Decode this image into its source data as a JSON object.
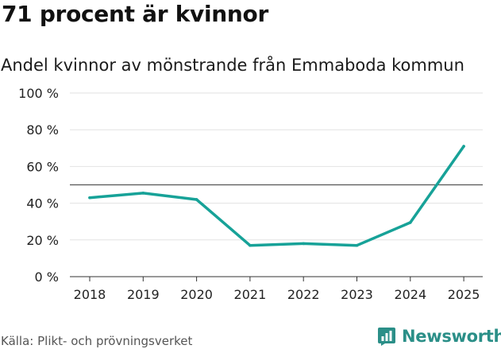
{
  "header": {
    "title": "71 procent är kvinnor",
    "subtitle": "Andel kvinnor av mönstrande från Emmaboda kommun"
  },
  "footer": {
    "source": "Källa: Plikt- och prövningsverket",
    "brand": "Newsworthy"
  },
  "colors": {
    "line": "#17a298",
    "grid": "#e2e2e2",
    "reference": "#555555",
    "brand": "#2b8f88"
  },
  "chart_data": {
    "type": "line",
    "title": "71 procent är kvinnor",
    "subtitle": "Andel kvinnor av mönstrande från Emmaboda kommun",
    "xlabel": "",
    "ylabel": "",
    "categories": [
      "2018",
      "2019",
      "2020",
      "2021",
      "2022",
      "2023",
      "2024",
      "2025"
    ],
    "series": [
      {
        "values": [
          43,
          45.5,
          42,
          17,
          18,
          17,
          29.5,
          71
        ]
      }
    ],
    "reference_line": 50,
    "ylim": [
      0,
      100
    ],
    "yticks": [
      0,
      20,
      40,
      60,
      80,
      100
    ],
    "ytick_labels": [
      "0 %",
      "20 %",
      "40 %",
      "60 %",
      "80 %",
      "100 %"
    ],
    "grid": true,
    "legend": "none"
  }
}
